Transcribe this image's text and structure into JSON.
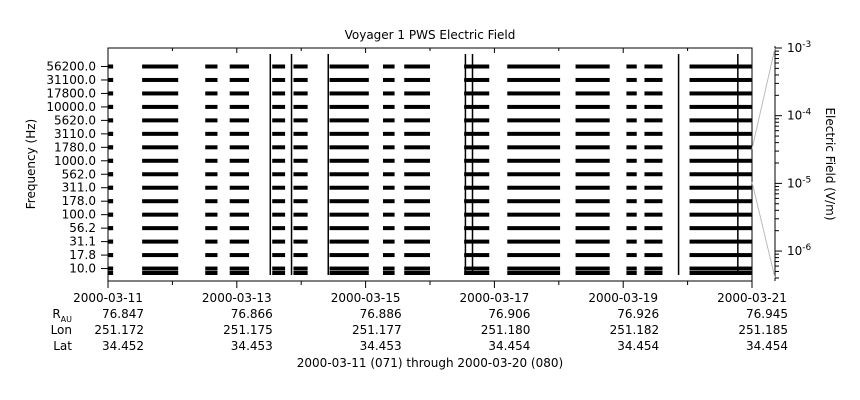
{
  "chart_data": {
    "type": "heatmap",
    "title": "Voyager 1 PWS Electric Field",
    "ylabel": "Frequency (Hz)",
    "colorbar_label": "Electric Field (V/m)",
    "colorbar_scale": "log",
    "colorbar_range": [
      4e-07,
      0.001
    ],
    "colorbar_ticks": [
      {
        "value": 0.001,
        "base": "10",
        "exp": "-3"
      },
      {
        "value": 0.0001,
        "base": "10",
        "exp": "-4"
      },
      {
        "value": 1e-05,
        "base": "10",
        "exp": "-5"
      },
      {
        "value": 1e-06,
        "base": "10",
        "exp": "-6"
      }
    ],
    "frequency_channels": [
      "56200.0",
      "31100.0",
      "17800.0",
      "10000.0",
      "5620.0",
      "3110.0",
      "1780.0",
      "1000.0",
      "562.0",
      "311.0",
      "178.0",
      "100.0",
      "56.2",
      "31.1",
      "17.8",
      "10.0"
    ],
    "x_range": [
      "2000-03-11",
      "2000-03-21"
    ],
    "x_tick_dates": [
      "2000-03-11",
      "2000-03-13",
      "2000-03-15",
      "2000-03-17",
      "2000-03-19",
      "2000-03-21"
    ],
    "ephemeris_labels": {
      "r": "R",
      "r_sub": "AU",
      "lon": "Lon",
      "lat": "Lat"
    },
    "ephemeris": {
      "r": [
        "76.847",
        "76.866",
        "76.886",
        "76.906",
        "76.926",
        "76.945"
      ],
      "lon": [
        "251.172",
        "251.175",
        "251.177",
        "251.180",
        "251.182",
        "251.185"
      ],
      "lat": [
        "34.452",
        "34.453",
        "34.453",
        "34.454",
        "34.454",
        "34.454"
      ]
    },
    "xlabel": "2000-03-11 (071) through 2000-03-20 (080)",
    "data_coverage_days": [
      [
        0.0,
        0.08
      ],
      [
        0.53,
        1.09
      ],
      [
        1.51,
        1.7
      ],
      [
        1.89,
        2.19
      ],
      [
        2.55,
        2.75
      ],
      [
        2.88,
        3.1
      ],
      [
        3.44,
        4.05
      ],
      [
        4.27,
        4.45
      ],
      [
        4.6,
        5.0
      ],
      [
        5.53,
        5.92
      ],
      [
        6.2,
        7.02
      ],
      [
        7.26,
        7.79
      ],
      [
        8.05,
        8.21
      ],
      [
        8.33,
        8.61
      ],
      [
        9.03,
        10.0
      ]
    ],
    "burst_days": [
      2.52,
      2.85,
      3.42,
      5.55,
      5.66,
      8.86,
      9.78
    ],
    "colors": {
      "data": "#000000",
      "background": "#ffffff",
      "axis": "#000000",
      "connector": "#bbbbbb"
    }
  }
}
